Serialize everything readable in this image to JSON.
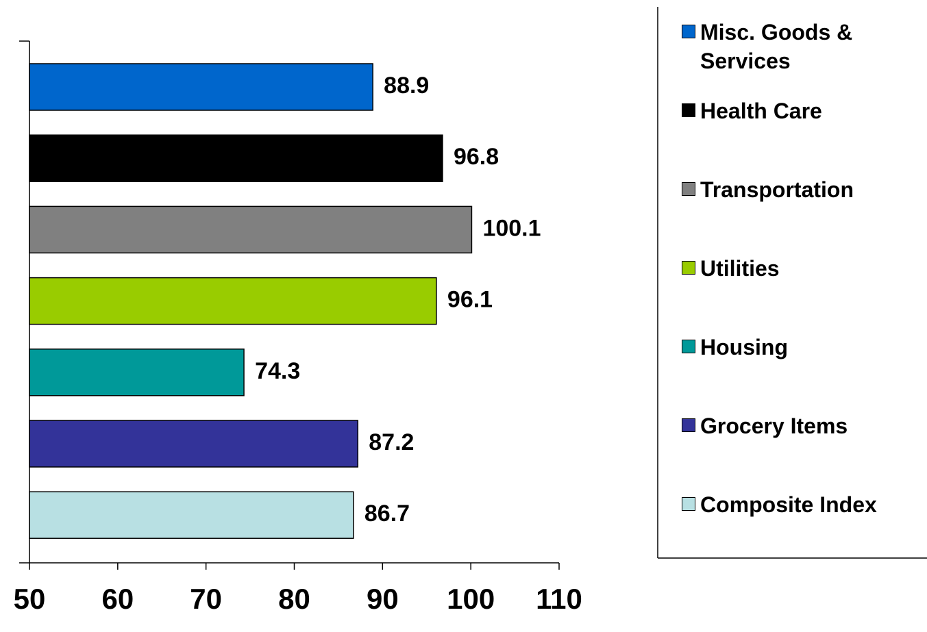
{
  "chart_data": {
    "type": "bar",
    "orientation": "horizontal",
    "series": [
      {
        "name": "Misc. Goods & Services",
        "color": "#0066cc",
        "values": [
          88.9
        ]
      },
      {
        "name": "Health Care",
        "color": "#000000",
        "values": [
          96.8
        ]
      },
      {
        "name": "Transportation",
        "color": "#808080",
        "values": [
          100.1
        ]
      },
      {
        "name": "Utilities",
        "color": "#99cc00",
        "values": [
          96.1
        ]
      },
      {
        "name": "Housing",
        "color": "#009999",
        "values": [
          74.3
        ]
      },
      {
        "name": "Grocery Items",
        "color": "#333399",
        "values": [
          87.2
        ]
      },
      {
        "name": "Composite Index",
        "color": "#b8e0e3",
        "values": [
          86.7
        ]
      }
    ],
    "xlim": [
      50,
      110
    ],
    "xticks": [
      50,
      60,
      70,
      80,
      90,
      100,
      110
    ],
    "legend": "right"
  }
}
